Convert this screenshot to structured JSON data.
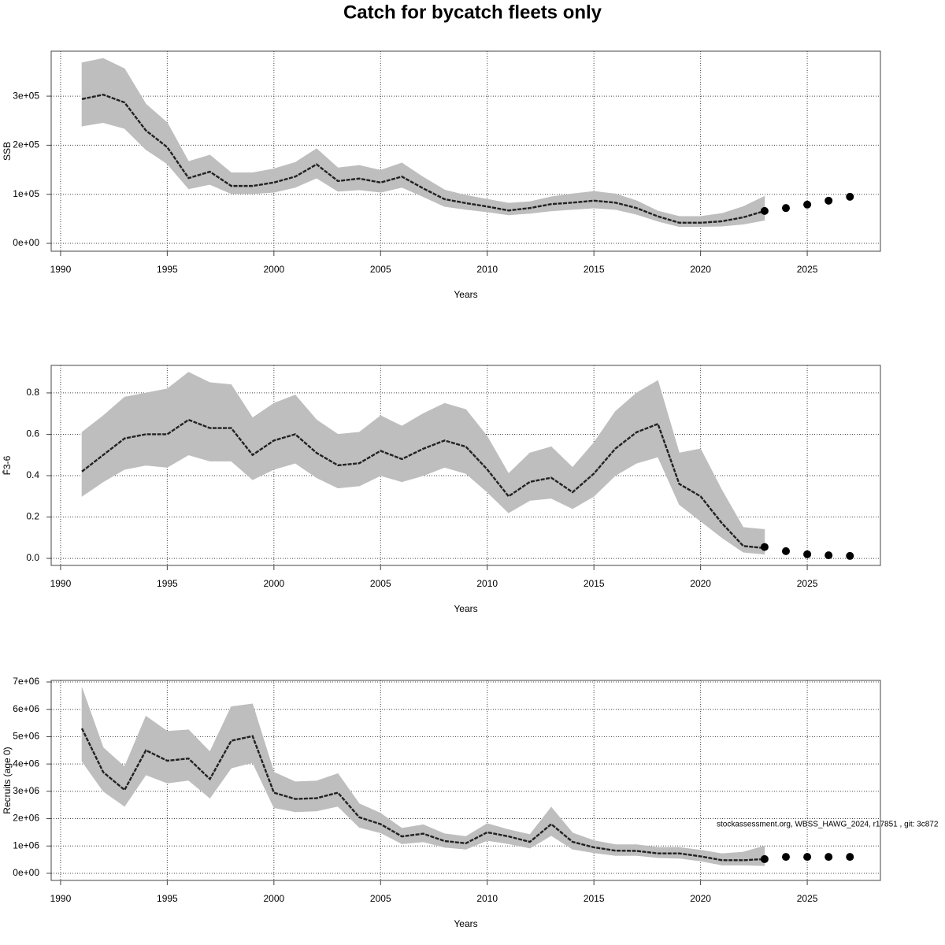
{
  "title": "Catch for bycatch fleets only",
  "chart_data": [
    {
      "type": "line",
      "ylabel": "SSB",
      "xlabel": "Years",
      "x": [
        1991,
        1992,
        1993,
        1994,
        1995,
        1996,
        1997,
        1998,
        1999,
        2000,
        2001,
        2002,
        2003,
        2004,
        2005,
        2006,
        2007,
        2008,
        2009,
        2010,
        2011,
        2012,
        2013,
        2014,
        2015,
        2016,
        2017,
        2018,
        2019,
        2020,
        2021,
        2022,
        2023
      ],
      "values": [
        294000,
        303000,
        287000,
        230000,
        196000,
        133000,
        146000,
        117000,
        117000,
        124000,
        136000,
        161000,
        127000,
        132000,
        124000,
        136000,
        112000,
        90000,
        82000,
        75000,
        67000,
        72000,
        80000,
        83000,
        87000,
        83000,
        72000,
        55000,
        42000,
        42000,
        45000,
        53000,
        66000
      ],
      "upper": [
        368000,
        377000,
        356000,
        284000,
        246000,
        167000,
        180000,
        144000,
        144000,
        152000,
        165000,
        193000,
        154000,
        159000,
        149000,
        164000,
        135000,
        109000,
        98000,
        90000,
        82000,
        85000,
        95000,
        101000,
        106000,
        101000,
        87000,
        66000,
        55000,
        55000,
        61000,
        75000,
        96000
      ],
      "lower": [
        239000,
        246000,
        234000,
        191000,
        162000,
        111000,
        120000,
        101000,
        101000,
        104000,
        114000,
        133000,
        106000,
        109000,
        104000,
        114000,
        95000,
        75000,
        69000,
        64000,
        58000,
        61000,
        66000,
        69000,
        72000,
        69000,
        59000,
        45000,
        34000,
        34000,
        35000,
        39000,
        47000
      ],
      "forecast_x": [
        2023,
        2024,
        2025,
        2026,
        2027
      ],
      "forecast_values": [
        66000,
        72000,
        79000,
        87000,
        95000
      ],
      "xlim": [
        1989.56,
        2028.43
      ],
      "xticks": [
        1990,
        1995,
        2000,
        2005,
        2010,
        2015,
        2020,
        2025
      ],
      "ylim": [
        -16000,
        391600
      ],
      "yticks": [
        {
          "value": 0,
          "label": "0e+00"
        },
        {
          "value": 100000,
          "label": "1e+05"
        },
        {
          "value": 200000,
          "label": "2e+05"
        },
        {
          "value": 300000,
          "label": "3e+05"
        }
      ],
      "grid": true,
      "line_color": "#222222",
      "band_color": "#bebebe",
      "point_color": "#000000"
    },
    {
      "type": "line",
      "ylabel": "F̄3-6",
      "xlabel": "Years",
      "x": [
        1991,
        1992,
        1993,
        1994,
        1995,
        1996,
        1997,
        1998,
        1999,
        2000,
        2001,
        2002,
        2003,
        2004,
        2005,
        2006,
        2007,
        2008,
        2009,
        2010,
        2011,
        2012,
        2013,
        2014,
        2015,
        2016,
        2017,
        2018,
        2019,
        2020,
        2021,
        2022,
        2023
      ],
      "values": [
        0.42,
        0.5,
        0.58,
        0.6,
        0.6,
        0.67,
        0.63,
        0.63,
        0.5,
        0.57,
        0.6,
        0.51,
        0.45,
        0.46,
        0.52,
        0.48,
        0.53,
        0.57,
        0.54,
        0.43,
        0.3,
        0.37,
        0.39,
        0.32,
        0.41,
        0.53,
        0.61,
        0.65,
        0.36,
        0.3,
        0.17,
        0.06,
        0.05
      ],
      "upper": [
        0.61,
        0.69,
        0.78,
        0.8,
        0.82,
        0.9,
        0.85,
        0.84,
        0.68,
        0.75,
        0.79,
        0.67,
        0.6,
        0.61,
        0.69,
        0.64,
        0.7,
        0.75,
        0.72,
        0.59,
        0.41,
        0.51,
        0.54,
        0.44,
        0.56,
        0.71,
        0.8,
        0.86,
        0.51,
        0.53,
        0.33,
        0.15,
        0.14
      ],
      "lower": [
        0.3,
        0.37,
        0.43,
        0.45,
        0.44,
        0.5,
        0.47,
        0.47,
        0.38,
        0.43,
        0.46,
        0.39,
        0.34,
        0.35,
        0.4,
        0.37,
        0.4,
        0.44,
        0.41,
        0.32,
        0.22,
        0.28,
        0.29,
        0.24,
        0.3,
        0.4,
        0.46,
        0.49,
        0.26,
        0.18,
        0.1,
        0.03,
        0.02
      ],
      "forecast_x": [
        2023,
        2024,
        2025,
        2026,
        2027
      ],
      "forecast_values": [
        0.055,
        0.035,
        0.02,
        0.015,
        0.012
      ],
      "xlim": [
        1989.56,
        2028.43
      ],
      "xticks": [
        1990,
        1995,
        2000,
        2005,
        2010,
        2015,
        2020,
        2025
      ],
      "ylim": [
        -0.034,
        0.933
      ],
      "yticks": [
        {
          "value": 0,
          "label": "0.0"
        },
        0.2,
        0.4,
        0.6,
        0.8
      ],
      "grid": true,
      "line_color": "#222222",
      "band_color": "#bebebe",
      "point_color": "#000000"
    },
    {
      "type": "line",
      "ylabel": "Recruits (age 0)",
      "xlabel": "Years",
      "x": [
        1991,
        1992,
        1993,
        1994,
        1995,
        1996,
        1997,
        1998,
        1999,
        2000,
        2001,
        2002,
        2003,
        2004,
        2005,
        2006,
        2007,
        2008,
        2009,
        2010,
        2011,
        2012,
        2013,
        2014,
        2015,
        2016,
        2017,
        2018,
        2019,
        2020,
        2021,
        2022,
        2023
      ],
      "values": [
        5300000,
        3700000,
        3050000,
        4500000,
        4120000,
        4200000,
        3450000,
        4850000,
        5020000,
        2950000,
        2720000,
        2750000,
        2950000,
        2050000,
        1800000,
        1350000,
        1450000,
        1180000,
        1100000,
        1500000,
        1350000,
        1150000,
        1800000,
        1150000,
        950000,
        830000,
        820000,
        730000,
        730000,
        620000,
        480000,
        480000,
        520000
      ],
      "upper": [
        6800000,
        4600000,
        3900000,
        5750000,
        5200000,
        5250000,
        4450000,
        6100000,
        6200000,
        3700000,
        3350000,
        3380000,
        3650000,
        2550000,
        2200000,
        1650000,
        1780000,
        1450000,
        1350000,
        1820000,
        1600000,
        1420000,
        2420000,
        1480000,
        1200000,
        1050000,
        1050000,
        950000,
        950000,
        850000,
        720000,
        780000,
        1000000
      ],
      "lower": [
        4100000,
        3000000,
        2450000,
        3600000,
        3300000,
        3400000,
        2750000,
        3850000,
        4050000,
        2400000,
        2250000,
        2280000,
        2450000,
        1680000,
        1480000,
        1080000,
        1150000,
        950000,
        880000,
        1200000,
        1080000,
        920000,
        1380000,
        880000,
        750000,
        650000,
        650000,
        570000,
        550000,
        450000,
        300000,
        300000,
        280000
      ],
      "forecast_x": [
        2023,
        2024,
        2025,
        2026,
        2027
      ],
      "forecast_values": [
        520000,
        600000,
        600000,
        600000,
        600000
      ],
      "xlim": [
        1989.56,
        2028.43
      ],
      "xticks": [
        1990,
        1995,
        2000,
        2005,
        2010,
        2015,
        2020,
        2025
      ],
      "ylim": [
        -260000,
        7058000
      ],
      "yticks": [
        {
          "value": 0,
          "label": "0e+00"
        },
        {
          "value": 1000000,
          "label": "1e+06"
        },
        {
          "value": 2000000,
          "label": "2e+06"
        },
        {
          "value": 3000000,
          "label": "3e+06"
        },
        {
          "value": 4000000,
          "label": "4e+06"
        },
        {
          "value": 5000000,
          "label": "5e+06"
        },
        {
          "value": 6000000,
          "label": "6e+06"
        },
        {
          "value": 7000000,
          "label": "7e+06"
        }
      ],
      "annotation": "stockassessment.org, WBSS_HAWG_2024, r17851 , git: 3c872",
      "grid": true,
      "line_color": "#222222",
      "band_color": "#bebebe",
      "point_color": "#000000"
    }
  ]
}
